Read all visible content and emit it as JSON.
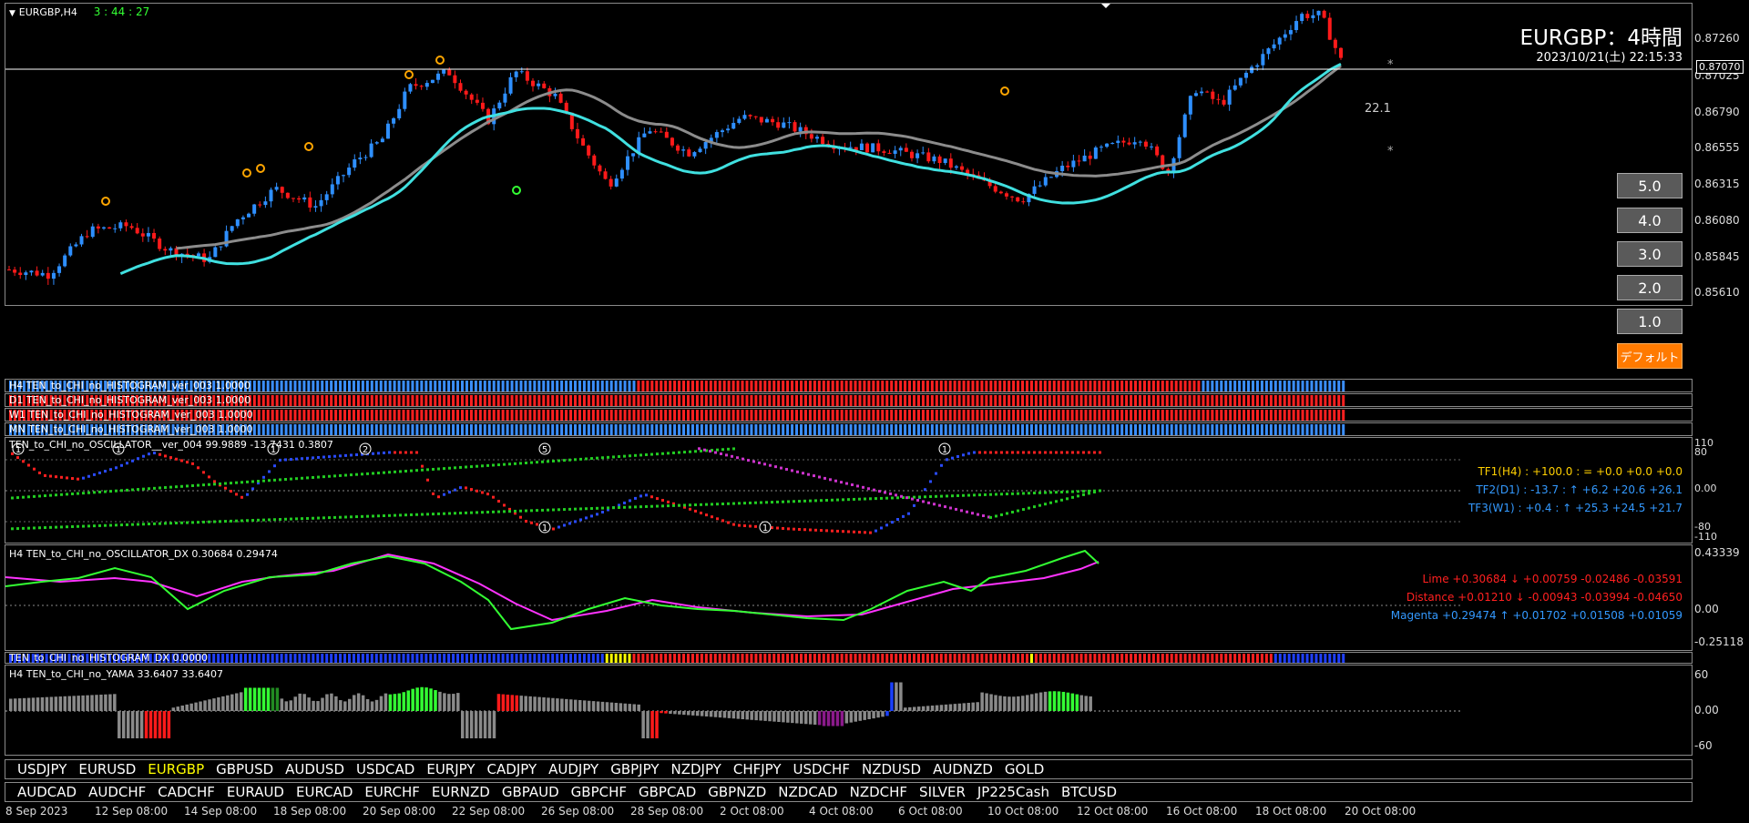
{
  "header": {
    "symbol_tf": "EURGBP,H4",
    "countdown": "3 : 44 : 27",
    "big_title": "EURGBP：4時間",
    "datetime": "2023/10/21(土) 22:15:33"
  },
  "main_scale": [
    "0.87260",
    "0.87025",
    "0.86790",
    "0.86555",
    "0.86315",
    "0.86080",
    "0.85845",
    "0.85610"
  ],
  "current_price": "0.87070",
  "label_22": "22.1",
  "buttons": [
    "5.0",
    "4.0",
    "3.0",
    "2.0",
    "1.0",
    "デフォルト"
  ],
  "hist_rows": [
    {
      "label": "H4 TEN_to_CHI_no_HISTOGRAM_ver_003 1.0000"
    },
    {
      "label": "D1 TEN_to_CHI_no_HISTOGRAM_ver_003 1.0000"
    },
    {
      "label": "W1 TEN_to_CHI_no_HISTOGRAM_ver_003 1.0000"
    },
    {
      "label": "MN TEN_to_CHI_no_HISTOGRAM_ver_003 1.0000"
    }
  ],
  "osc": {
    "title": "TEN_to_CHI_no_OSCILLATOR__ver_004 99.9889 -13.7431 0.3807",
    "scale": [
      "110",
      "80",
      "0.00",
      "-80",
      "-110"
    ],
    "tf1": "TF1(H4) : +100.0 : = +0.0 +0.0 +0.0",
    "tf2": "TF2(D1) : -13.7 : ↑ +6.2 +20.6 +26.1",
    "tf3": "TF3(W1) : +0.4 : ↑ +25.3 +24.5 +21.7",
    "markers": [
      "1",
      "1",
      "1",
      "2",
      "5",
      "1",
      "1",
      "1"
    ]
  },
  "dx": {
    "title": "H4 TEN_to_CHI_no_OSCILLATOR_DX 0.30684 0.29474",
    "scale": [
      "0.43339",
      "0.00",
      "-0.25118"
    ],
    "lime": "Lime +0.30684 ↓ +0.00759 -0.02486 -0.03591",
    "distance": "Distance +0.01210 ↓ -0.00943 -0.03994 -0.04650",
    "magenta": "Magenta +0.29474 ↑ +0.01702 +0.01508 +0.01059"
  },
  "histdx": {
    "title": "TEN_to_CHI_no_HISTOGRAM_DX 0.0000"
  },
  "yama": {
    "title": "H4  TEN_to_CHI_no_YAMA 33.6407 33.6407",
    "scale": [
      "60",
      "0.00",
      "-60"
    ]
  },
  "symbols_row1": [
    "USDJPY",
    "EURUSD",
    "EURGBP",
    "GBPUSD",
    "AUDUSD",
    "USDCAD",
    "EURJPY",
    "CADJPY",
    "AUDJPY",
    "GBPJPY",
    "NZDJPY",
    "CHFJPY",
    "USDCHF",
    "NZDUSD",
    "AUDNZD",
    "GOLD"
  ],
  "symbols_row2": [
    "AUDCAD",
    "AUDCHF",
    "CADCHF",
    "EURAUD",
    "EURCAD",
    "EURCHF",
    "EURNZD",
    "GBPAUD",
    "GBPCHF",
    "GBPCAD",
    "GBPNZD",
    "NZDCAD",
    "NZDCHF",
    "SILVER",
    "JP225Cash",
    "BTCUSD"
  ],
  "active_symbol_color": "#ffff00",
  "dates": [
    "8 Sep 2023",
    "12 Sep 08:00",
    "14 Sep 08:00",
    "18 Sep 08:00",
    "20 Sep 08:00",
    "22 Sep 08:00",
    "26 Sep 08:00",
    "28 Sep 08:00",
    "2 Oct 08:00",
    "4 Oct 08:00",
    "6 Oct 08:00",
    "10 Oct 08:00",
    "12 Oct 08:00",
    "16 Oct 08:00",
    "18 Oct 08:00",
    "20 Oct 08:00"
  ],
  "colors": {
    "bull": "#2e8fff",
    "bear": "#ff1a1a",
    "ma_cyan": "#40e0e0",
    "ma_gray": "#8c8c8c",
    "magenta": "#ff33ff",
    "lime": "#33ff33"
  }
}
